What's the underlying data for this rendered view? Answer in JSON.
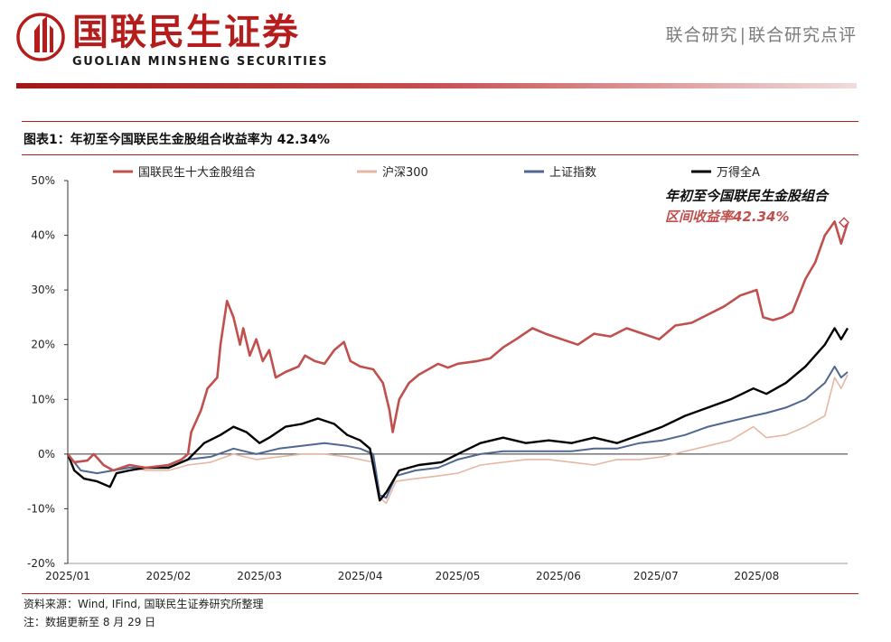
{
  "header": {
    "brand_cn": "国联民生证券",
    "brand_en": "GUOLIAN MINSHENG SECURITIES",
    "breadcrumb_1": "联合研究",
    "breadcrumb_sep": "|",
    "breadcrumb_2": "联合研究点评",
    "accent_color": "#b51c1c"
  },
  "figure": {
    "title": "图表1：年初至今国联民生金股组合收益率为 42.34%"
  },
  "footer": {
    "source": "资料来源：Wind, IFind, 国联民生证券研究所整理",
    "note": "注：数据更新至 8 月 29 日"
  },
  "chart_data": {
    "type": "line",
    "title": "",
    "xlabel": "",
    "ylabel": "",
    "ylim": [
      -20,
      50
    ],
    "y_ticks": [
      "50%",
      "40%",
      "30%",
      "20%",
      "10%",
      "0%",
      "-10%",
      "-20%"
    ],
    "y_tick_values": [
      50,
      40,
      30,
      20,
      10,
      0,
      -10,
      -20
    ],
    "x_range": [
      "2025-01-01",
      "2025-08-29"
    ],
    "x_ticks": [
      {
        "label": "2025/01",
        "date": "2025-01-01"
      },
      {
        "label": "2025/02",
        "date": "2025-02-01"
      },
      {
        "label": "2025/03",
        "date": "2025-03-01"
      },
      {
        "label": "2025/04",
        "date": "2025-04-01"
      },
      {
        "label": "2025/05",
        "date": "2025-05-01"
      },
      {
        "label": "2025/06",
        "date": "2025-06-01"
      },
      {
        "label": "2025/07",
        "date": "2025-07-01"
      },
      {
        "label": "2025/08",
        "date": "2025-08-01"
      }
    ],
    "grid": false,
    "legend_position": "top",
    "annotation": {
      "line1": "年初至今国联民生金股组合",
      "line2": "区间收益率42.34%",
      "marker_date": "2025-08-29",
      "marker_value": 42.34
    },
    "series": [
      {
        "name": "国联民生十大金股组合",
        "color": "#c0504d",
        "width": 2.6,
        "points": [
          [
            "2025-01-01",
            0
          ],
          [
            "2025-01-03",
            -1.5
          ],
          [
            "2025-01-07",
            -1.2
          ],
          [
            "2025-01-09",
            0
          ],
          [
            "2025-01-12",
            -2
          ],
          [
            "2025-01-15",
            -3
          ],
          [
            "2025-01-20",
            -2
          ],
          [
            "2025-01-25",
            -2.5
          ],
          [
            "2025-02-01",
            -2
          ],
          [
            "2025-02-05",
            -1
          ],
          [
            "2025-02-07",
            0
          ],
          [
            "2025-02-08",
            4
          ],
          [
            "2025-02-11",
            8
          ],
          [
            "2025-02-13",
            12
          ],
          [
            "2025-02-16",
            14
          ],
          [
            "2025-02-17",
            20
          ],
          [
            "2025-02-19",
            28
          ],
          [
            "2025-02-21",
            25
          ],
          [
            "2025-02-23",
            20
          ],
          [
            "2025-02-24",
            23
          ],
          [
            "2025-02-26",
            18
          ],
          [
            "2025-02-28",
            21
          ],
          [
            "2025-03-02",
            17
          ],
          [
            "2025-03-04",
            19
          ],
          [
            "2025-03-06",
            14
          ],
          [
            "2025-03-09",
            15
          ],
          [
            "2025-03-11",
            15.5
          ],
          [
            "2025-03-13",
            16
          ],
          [
            "2025-03-15",
            18
          ],
          [
            "2025-03-18",
            17
          ],
          [
            "2025-03-21",
            16.5
          ],
          [
            "2025-03-24",
            19
          ],
          [
            "2025-03-27",
            20.5
          ],
          [
            "2025-03-29",
            17
          ],
          [
            "2025-04-01",
            16
          ],
          [
            "2025-04-05",
            15.5
          ],
          [
            "2025-04-08",
            13
          ],
          [
            "2025-04-10",
            8
          ],
          [
            "2025-04-11",
            4
          ],
          [
            "2025-04-13",
            10
          ],
          [
            "2025-04-16",
            13
          ],
          [
            "2025-04-19",
            14.5
          ],
          [
            "2025-04-22",
            15.5
          ],
          [
            "2025-04-25",
            16.5
          ],
          [
            "2025-04-28",
            15.8
          ],
          [
            "2025-05-01",
            16.5
          ],
          [
            "2025-05-07",
            17
          ],
          [
            "2025-05-11",
            17.5
          ],
          [
            "2025-05-15",
            19.5
          ],
          [
            "2025-05-19",
            21
          ],
          [
            "2025-05-24",
            23
          ],
          [
            "2025-05-28",
            22
          ],
          [
            "2025-06-02",
            21
          ],
          [
            "2025-06-07",
            20
          ],
          [
            "2025-06-12",
            22
          ],
          [
            "2025-06-17",
            21.5
          ],
          [
            "2025-06-22",
            23
          ],
          [
            "2025-06-27",
            22
          ],
          [
            "2025-07-02",
            21
          ],
          [
            "2025-07-07",
            23.5
          ],
          [
            "2025-07-12",
            24
          ],
          [
            "2025-07-17",
            25.5
          ],
          [
            "2025-07-22",
            27
          ],
          [
            "2025-07-27",
            29
          ],
          [
            "2025-08-01",
            30
          ],
          [
            "2025-08-03",
            25
          ],
          [
            "2025-08-06",
            24.5
          ],
          [
            "2025-08-09",
            25
          ],
          [
            "2025-08-12",
            26
          ],
          [
            "2025-08-16",
            32
          ],
          [
            "2025-08-19",
            35
          ],
          [
            "2025-08-22",
            40
          ],
          [
            "2025-08-25",
            42.5
          ],
          [
            "2025-08-27",
            38.5
          ],
          [
            "2025-08-29",
            42.34
          ]
        ]
      },
      {
        "name": "沪深300",
        "color": "#e6b7a3",
        "width": 1.6,
        "points": [
          [
            "2025-01-01",
            0
          ],
          [
            "2025-01-05",
            -3
          ],
          [
            "2025-01-10",
            -3.5
          ],
          [
            "2025-01-15",
            -3
          ],
          [
            "2025-01-20",
            -2.5
          ],
          [
            "2025-01-25",
            -3
          ],
          [
            "2025-02-01",
            -3
          ],
          [
            "2025-02-07",
            -2
          ],
          [
            "2025-02-14",
            -1.5
          ],
          [
            "2025-02-21",
            0
          ],
          [
            "2025-02-28",
            -1
          ],
          [
            "2025-03-07",
            -0.5
          ],
          [
            "2025-03-14",
            0
          ],
          [
            "2025-03-21",
            0
          ],
          [
            "2025-03-28",
            -0.5
          ],
          [
            "2025-04-01",
            -1
          ],
          [
            "2025-04-05",
            -1.5
          ],
          [
            "2025-04-07",
            -8
          ],
          [
            "2025-04-09",
            -9
          ],
          [
            "2025-04-12",
            -5
          ],
          [
            "2025-04-18",
            -4.5
          ],
          [
            "2025-04-25",
            -4
          ],
          [
            "2025-05-01",
            -3.5
          ],
          [
            "2025-05-08",
            -2
          ],
          [
            "2025-05-15",
            -1.5
          ],
          [
            "2025-05-22",
            -1
          ],
          [
            "2025-05-29",
            -1
          ],
          [
            "2025-06-05",
            -1.5
          ],
          [
            "2025-06-12",
            -2
          ],
          [
            "2025-06-19",
            -1
          ],
          [
            "2025-06-26",
            -1
          ],
          [
            "2025-07-03",
            -0.5
          ],
          [
            "2025-07-10",
            0.5
          ],
          [
            "2025-07-17",
            1.5
          ],
          [
            "2025-07-24",
            2.5
          ],
          [
            "2025-07-31",
            5
          ],
          [
            "2025-08-04",
            3
          ],
          [
            "2025-08-10",
            3.5
          ],
          [
            "2025-08-16",
            5
          ],
          [
            "2025-08-22",
            7
          ],
          [
            "2025-08-25",
            14
          ],
          [
            "2025-08-27",
            12
          ],
          [
            "2025-08-29",
            14.5
          ]
        ]
      },
      {
        "name": "上证指数",
        "color": "#4f6791",
        "width": 2,
        "points": [
          [
            "2025-01-01",
            0
          ],
          [
            "2025-01-05",
            -3
          ],
          [
            "2025-01-10",
            -3.5
          ],
          [
            "2025-01-15",
            -3
          ],
          [
            "2025-01-20",
            -2.5
          ],
          [
            "2025-01-25",
            -2.5
          ],
          [
            "2025-02-01",
            -2.5
          ],
          [
            "2025-02-07",
            -1
          ],
          [
            "2025-02-14",
            -0.5
          ],
          [
            "2025-02-21",
            1
          ],
          [
            "2025-02-28",
            0
          ],
          [
            "2025-03-07",
            1
          ],
          [
            "2025-03-14",
            1.5
          ],
          [
            "2025-03-21",
            2
          ],
          [
            "2025-03-28",
            1.5
          ],
          [
            "2025-04-01",
            1
          ],
          [
            "2025-04-05",
            0
          ],
          [
            "2025-04-07",
            -7.5
          ],
          [
            "2025-04-09",
            -8
          ],
          [
            "2025-04-12",
            -4
          ],
          [
            "2025-04-18",
            -3
          ],
          [
            "2025-04-25",
            -2.5
          ],
          [
            "2025-05-01",
            -1
          ],
          [
            "2025-05-08",
            0
          ],
          [
            "2025-05-15",
            0.5
          ],
          [
            "2025-05-22",
            0.5
          ],
          [
            "2025-05-29",
            0.5
          ],
          [
            "2025-06-05",
            0.5
          ],
          [
            "2025-06-12",
            1
          ],
          [
            "2025-06-19",
            1
          ],
          [
            "2025-06-26",
            2
          ],
          [
            "2025-07-03",
            2.5
          ],
          [
            "2025-07-10",
            3.5
          ],
          [
            "2025-07-17",
            5
          ],
          [
            "2025-07-24",
            6
          ],
          [
            "2025-07-31",
            7
          ],
          [
            "2025-08-04",
            7.5
          ],
          [
            "2025-08-10",
            8.5
          ],
          [
            "2025-08-16",
            10
          ],
          [
            "2025-08-22",
            13
          ],
          [
            "2025-08-25",
            16
          ],
          [
            "2025-08-27",
            14
          ],
          [
            "2025-08-29",
            15
          ]
        ]
      },
      {
        "name": "万得全A",
        "color": "#000000",
        "width": 2.4,
        "points": [
          [
            "2025-01-01",
            0
          ],
          [
            "2025-01-03",
            -3
          ],
          [
            "2025-01-06",
            -4.5
          ],
          [
            "2025-01-10",
            -5
          ],
          [
            "2025-01-14",
            -6
          ],
          [
            "2025-01-16",
            -3.5
          ],
          [
            "2025-01-20",
            -3
          ],
          [
            "2025-01-25",
            -2.5
          ],
          [
            "2025-02-01",
            -2.5
          ],
          [
            "2025-02-07",
            -1
          ],
          [
            "2025-02-12",
            2
          ],
          [
            "2025-02-17",
            3.5
          ],
          [
            "2025-02-21",
            5
          ],
          [
            "2025-02-25",
            4
          ],
          [
            "2025-03-01",
            2
          ],
          [
            "2025-03-04",
            3
          ],
          [
            "2025-03-09",
            5
          ],
          [
            "2025-03-14",
            5.5
          ],
          [
            "2025-03-19",
            6.5
          ],
          [
            "2025-03-24",
            5.5
          ],
          [
            "2025-03-28",
            3.5
          ],
          [
            "2025-04-01",
            2.5
          ],
          [
            "2025-04-04",
            1
          ],
          [
            "2025-04-07",
            -8.5
          ],
          [
            "2025-04-09",
            -7
          ],
          [
            "2025-04-13",
            -3
          ],
          [
            "2025-04-19",
            -2
          ],
          [
            "2025-04-26",
            -1.5
          ],
          [
            "2025-05-01",
            0
          ],
          [
            "2025-05-08",
            2
          ],
          [
            "2025-05-15",
            3
          ],
          [
            "2025-05-22",
            2
          ],
          [
            "2025-05-29",
            2.5
          ],
          [
            "2025-06-05",
            2
          ],
          [
            "2025-06-12",
            3
          ],
          [
            "2025-06-19",
            2
          ],
          [
            "2025-06-26",
            3.5
          ],
          [
            "2025-07-03",
            5
          ],
          [
            "2025-07-10",
            7
          ],
          [
            "2025-07-17",
            8.5
          ],
          [
            "2025-07-24",
            10
          ],
          [
            "2025-07-31",
            12
          ],
          [
            "2025-08-04",
            11
          ],
          [
            "2025-08-10",
            13
          ],
          [
            "2025-08-16",
            16
          ],
          [
            "2025-08-22",
            20
          ],
          [
            "2025-08-25",
            23
          ],
          [
            "2025-08-27",
            21
          ],
          [
            "2025-08-29",
            23
          ]
        ]
      }
    ]
  }
}
